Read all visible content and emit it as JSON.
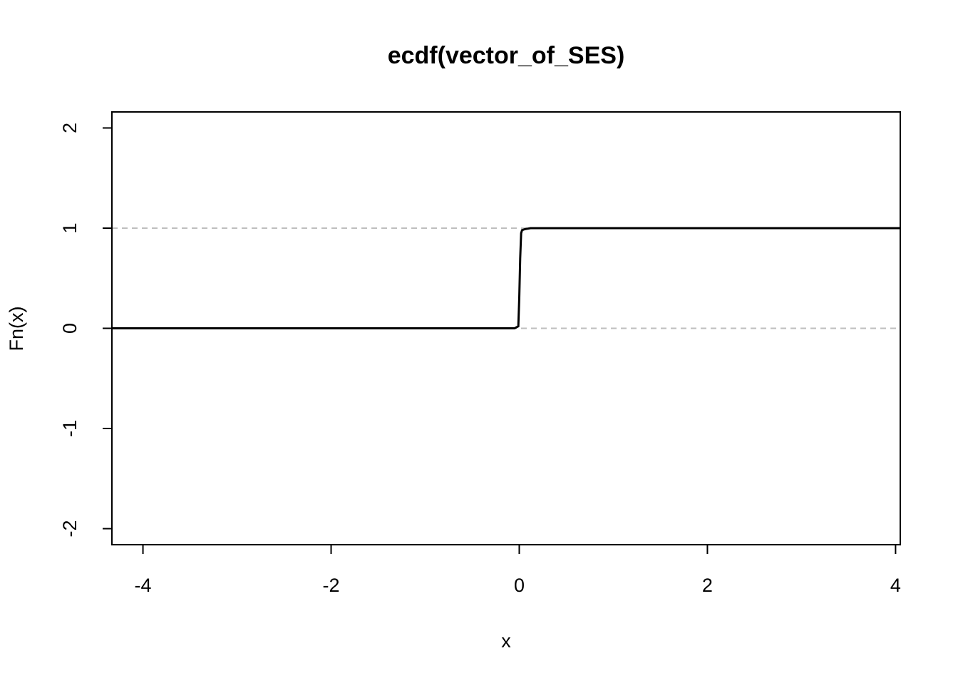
{
  "chart_data": {
    "type": "line",
    "title": "ecdf(vector_of_SES)",
    "x_label": "x",
    "y_label": "Fn(x)",
    "x": [
      -4.33,
      -0.05,
      -0.03,
      -0.01,
      0.0,
      0.01,
      0.02,
      0.03,
      0.06,
      0.12,
      4.05
    ],
    "series": [
      {
        "name": "Fn(x)",
        "color": "#000000",
        "values": [
          0,
          0,
          0.01,
          0.02,
          0.3,
          0.7,
          0.95,
          0.98,
          0.99,
          1,
          1
        ]
      }
    ],
    "hlines": [
      0,
      1
    ],
    "hline_color": "#bebebe",
    "xlim": [
      -4.33,
      4.05
    ],
    "ylim": [
      -2.16,
      2.16
    ],
    "xticks": [
      -4,
      -2,
      0,
      2,
      4
    ],
    "yticks": [
      -2,
      -1,
      0,
      1,
      2
    ]
  }
}
